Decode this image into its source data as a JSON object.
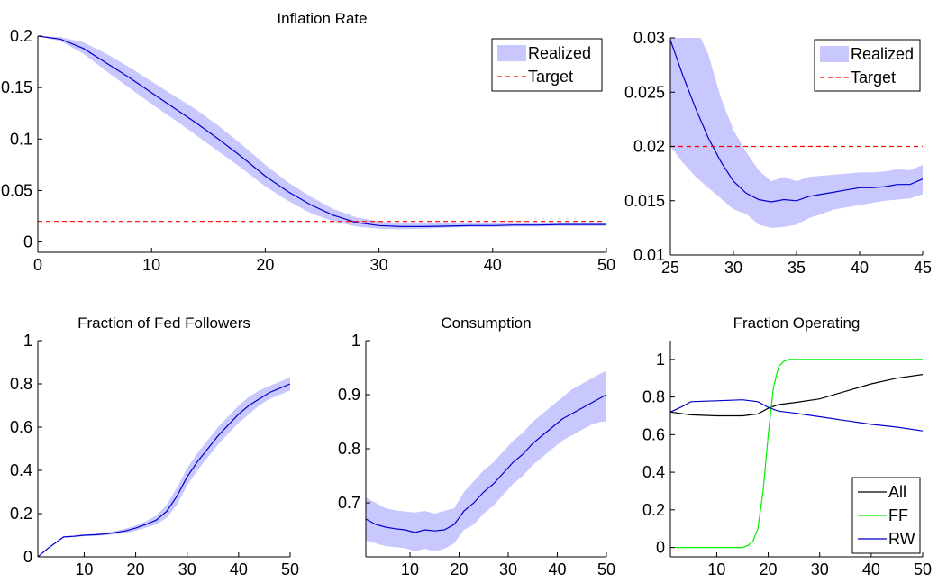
{
  "chart_data": [
    {
      "id": "inflation_full",
      "type": "line",
      "title": "Inflation Rate",
      "xlim": [
        0,
        50
      ],
      "ylim": [
        -0.01,
        0.2
      ],
      "xticks": [
        0,
        10,
        20,
        30,
        40,
        50
      ],
      "yticks": [
        0,
        0.05,
        0.1,
        0.15,
        0.2
      ],
      "xtick_labels": [
        "0",
        "10",
        "20",
        "30",
        "40",
        "50"
      ],
      "ytick_labels": [
        "0",
        "0.05",
        "0.1",
        "0.15",
        "0.2"
      ],
      "legend": {
        "position": "top-right",
        "entries": [
          "Realized",
          "Target"
        ]
      },
      "series": [
        {
          "name": "Realized",
          "kind": "band-line",
          "color": "#0000cc",
          "fill": "#c8c8ff",
          "x": [
            0,
            2,
            4,
            6,
            8,
            10,
            12,
            14,
            16,
            18,
            20,
            22,
            24,
            26,
            28,
            30,
            32,
            34,
            36,
            38,
            40,
            42,
            44,
            46,
            48,
            50
          ],
          "y": [
            0.2,
            0.197,
            0.188,
            0.174,
            0.16,
            0.145,
            0.13,
            0.115,
            0.099,
            0.082,
            0.064,
            0.049,
            0.036,
            0.026,
            0.019,
            0.016,
            0.015,
            0.015,
            0.0155,
            0.016,
            0.016,
            0.0165,
            0.0165,
            0.017,
            0.017,
            0.017
          ],
          "upper": [
            0.2,
            0.199,
            0.194,
            0.183,
            0.17,
            0.156,
            0.142,
            0.128,
            0.112,
            0.094,
            0.075,
            0.058,
            0.044,
            0.032,
            0.024,
            0.02,
            0.018,
            0.018,
            0.018,
            0.018,
            0.018,
            0.018,
            0.018,
            0.0185,
            0.0185,
            0.0185
          ],
          "lower": [
            0.2,
            0.195,
            0.183,
            0.166,
            0.15,
            0.134,
            0.119,
            0.103,
            0.087,
            0.071,
            0.054,
            0.04,
            0.028,
            0.02,
            0.015,
            0.013,
            0.0125,
            0.013,
            0.014,
            0.0145,
            0.0145,
            0.015,
            0.015,
            0.0155,
            0.0155,
            0.0155
          ]
        },
        {
          "name": "Target",
          "kind": "dashed",
          "color": "#ff0000",
          "x": [
            0,
            50
          ],
          "y": [
            0.02,
            0.02
          ]
        }
      ]
    },
    {
      "id": "inflation_zoom",
      "type": "line",
      "title": "",
      "xlim": [
        25,
        45
      ],
      "ylim": [
        0.01,
        0.03
      ],
      "xticks": [
        25,
        30,
        35,
        40,
        45
      ],
      "yticks": [
        0.01,
        0.015,
        0.02,
        0.025,
        0.03
      ],
      "xtick_labels": [
        "25",
        "30",
        "35",
        "40",
        "45"
      ],
      "ytick_labels": [
        "0.01",
        "0.015",
        "0.02",
        "0.025",
        "0.03"
      ],
      "legend": {
        "position": "top-right",
        "entries": [
          "Realized",
          "Target"
        ]
      },
      "series": [
        {
          "name": "Realized",
          "kind": "band-line",
          "color": "#0000cc",
          "fill": "#c8c8ff",
          "x": [
            25,
            26,
            27,
            28,
            29,
            30,
            31,
            32,
            33,
            34,
            35,
            36,
            37,
            38,
            39,
            40,
            41,
            42,
            43,
            44,
            45
          ],
          "y": [
            0.0298,
            0.0265,
            0.0235,
            0.0208,
            0.0186,
            0.0168,
            0.0157,
            0.0151,
            0.0149,
            0.0151,
            0.015,
            0.0154,
            0.0156,
            0.0158,
            0.016,
            0.0162,
            0.0162,
            0.0163,
            0.0165,
            0.0165,
            0.017
          ],
          "upper": [
            0.031,
            0.031,
            0.031,
            0.0285,
            0.0245,
            0.0215,
            0.0195,
            0.0178,
            0.0168,
            0.0172,
            0.0168,
            0.0172,
            0.0173,
            0.0174,
            0.0175,
            0.0176,
            0.0176,
            0.0177,
            0.0179,
            0.0178,
            0.0183
          ],
          "lower": [
            0.02,
            0.0185,
            0.0172,
            0.0162,
            0.0152,
            0.0142,
            0.0138,
            0.0128,
            0.0125,
            0.0126,
            0.0128,
            0.0134,
            0.0138,
            0.0142,
            0.0144,
            0.0146,
            0.0148,
            0.015,
            0.0151,
            0.0152,
            0.0156
          ]
        },
        {
          "name": "Target",
          "kind": "dashed",
          "color": "#ff0000",
          "x": [
            25,
            45
          ],
          "y": [
            0.02,
            0.02
          ]
        }
      ]
    },
    {
      "id": "fed_followers",
      "type": "line",
      "title": "Fraction of Fed Followers",
      "xlim": [
        1,
        50
      ],
      "ylim": [
        0,
        1
      ],
      "xticks": [
        10,
        20,
        30,
        40,
        50
      ],
      "yticks": [
        0,
        0.2,
        0.4,
        0.6,
        0.8,
        1
      ],
      "xtick_labels": [
        "10",
        "20",
        "30",
        "40",
        "50"
      ],
      "ytick_labels": [
        "0",
        "0.2",
        "0.4",
        "0.6",
        "0.8",
        "1"
      ],
      "series": [
        {
          "name": "",
          "kind": "band-line",
          "color": "#0000cc",
          "fill": "#c8c8ff",
          "x": [
            1,
            3,
            6,
            8,
            10,
            12,
            14,
            16,
            18,
            20,
            22,
            24,
            26,
            28,
            30,
            32,
            34,
            36,
            38,
            40,
            42,
            44,
            46,
            48,
            50
          ],
          "y": [
            0,
            0.04,
            0.092,
            0.095,
            0.1,
            0.102,
            0.106,
            0.112,
            0.12,
            0.133,
            0.15,
            0.17,
            0.21,
            0.28,
            0.37,
            0.44,
            0.5,
            0.56,
            0.61,
            0.66,
            0.7,
            0.73,
            0.76,
            0.78,
            0.8
          ],
          "upper": [
            0,
            0.04,
            0.095,
            0.099,
            0.104,
            0.107,
            0.112,
            0.12,
            0.13,
            0.145,
            0.165,
            0.19,
            0.24,
            0.32,
            0.41,
            0.48,
            0.54,
            0.6,
            0.65,
            0.7,
            0.74,
            0.77,
            0.79,
            0.81,
            0.83
          ],
          "lower": [
            0,
            0.04,
            0.089,
            0.091,
            0.096,
            0.097,
            0.1,
            0.104,
            0.11,
            0.121,
            0.135,
            0.15,
            0.18,
            0.24,
            0.33,
            0.4,
            0.46,
            0.52,
            0.57,
            0.62,
            0.66,
            0.7,
            0.73,
            0.75,
            0.77
          ]
        }
      ]
    },
    {
      "id": "consumption",
      "type": "line",
      "title": "Consumption",
      "xlim": [
        1,
        50
      ],
      "ylim": [
        0.6,
        1
      ],
      "xticks": [
        10,
        20,
        30,
        40,
        50
      ],
      "yticks": [
        0.7,
        0.8,
        0.9,
        1
      ],
      "xtick_labels": [
        "10",
        "20",
        "30",
        "40",
        "50"
      ],
      "ytick_labels": [
        "0.7",
        "0.8",
        "0.9",
        "1"
      ],
      "series": [
        {
          "name": "",
          "kind": "band-line",
          "color": "#0000cc",
          "fill": "#c8c8ff",
          "x": [
            1,
            3,
            5,
            7,
            9,
            11,
            13,
            15,
            17,
            19,
            21,
            23,
            25,
            27,
            29,
            31,
            33,
            35,
            37,
            39,
            41,
            43,
            45,
            47,
            49,
            50
          ],
          "y": [
            0.67,
            0.66,
            0.655,
            0.652,
            0.65,
            0.645,
            0.65,
            0.648,
            0.65,
            0.66,
            0.685,
            0.7,
            0.72,
            0.735,
            0.755,
            0.775,
            0.79,
            0.81,
            0.825,
            0.84,
            0.855,
            0.865,
            0.875,
            0.885,
            0.895,
            0.9
          ],
          "upper": [
            0.71,
            0.7,
            0.69,
            0.686,
            0.684,
            0.682,
            0.685,
            0.68,
            0.685,
            0.69,
            0.72,
            0.74,
            0.76,
            0.775,
            0.795,
            0.815,
            0.83,
            0.85,
            0.865,
            0.88,
            0.895,
            0.91,
            0.92,
            0.93,
            0.94,
            0.945
          ],
          "lower": [
            0.63,
            0.625,
            0.62,
            0.618,
            0.616,
            0.61,
            0.615,
            0.61,
            0.615,
            0.625,
            0.65,
            0.66,
            0.68,
            0.695,
            0.715,
            0.735,
            0.75,
            0.77,
            0.785,
            0.8,
            0.815,
            0.825,
            0.835,
            0.845,
            0.85,
            0.85
          ]
        }
      ]
    },
    {
      "id": "fraction_operating",
      "type": "line",
      "title": "Fraction Operating",
      "xlim": [
        1,
        50
      ],
      "ylim": [
        -0.05,
        1.1
      ],
      "xticks": [
        10,
        20,
        30,
        40,
        50
      ],
      "yticks": [
        0,
        0.2,
        0.4,
        0.6,
        0.8,
        1
      ],
      "xtick_labels": [
        "10",
        "20",
        "30",
        "40",
        "50"
      ],
      "ytick_labels": [
        "0",
        "0.2",
        "0.4",
        "0.6",
        "0.8",
        "1"
      ],
      "legend": {
        "position": "bottom-right",
        "entries": [
          "All",
          "FF",
          "RW"
        ]
      },
      "series": [
        {
          "name": "All",
          "kind": "line",
          "color": "#000000",
          "x": [
            1,
            5,
            10,
            15,
            18,
            20,
            22,
            25,
            30,
            35,
            40,
            45,
            50
          ],
          "y": [
            0.72,
            0.705,
            0.7,
            0.7,
            0.71,
            0.74,
            0.76,
            0.77,
            0.79,
            0.83,
            0.87,
            0.9,
            0.92
          ]
        },
        {
          "name": "FF",
          "kind": "line",
          "color": "#00ee00",
          "x": [
            1,
            10,
            15,
            16,
            17,
            18,
            19,
            20,
            21,
            22,
            23,
            24,
            25,
            30,
            40,
            50
          ],
          "y": [
            0,
            0,
            0,
            0.01,
            0.03,
            0.1,
            0.3,
            0.6,
            0.85,
            0.96,
            0.99,
            1.0,
            1.0,
            1.0,
            1.0,
            1.0
          ]
        },
        {
          "name": "RW",
          "kind": "line",
          "color": "#0000cc",
          "x": [
            1,
            3,
            5,
            8,
            10,
            15,
            18,
            20,
            22,
            25,
            30,
            35,
            40,
            45,
            50
          ],
          "y": [
            0.72,
            0.745,
            0.775,
            0.778,
            0.78,
            0.785,
            0.775,
            0.745,
            0.725,
            0.715,
            0.695,
            0.675,
            0.655,
            0.64,
            0.62
          ]
        }
      ]
    }
  ]
}
